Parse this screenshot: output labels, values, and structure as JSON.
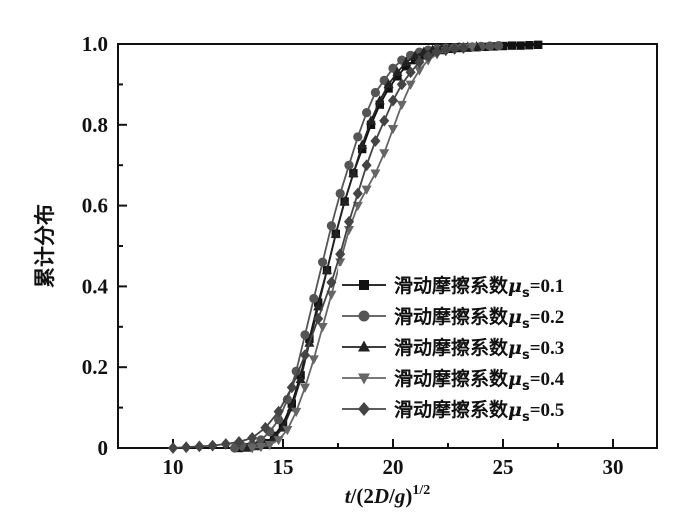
{
  "chart_data": {
    "type": "line",
    "xlabel_parts": [
      "t",
      "/(2",
      "D",
      "/",
      "g",
      ")",
      "1/2"
    ],
    "ylabel": "累计分布",
    "xlim": [
      7.5,
      32
    ],
    "ylim": [
      0,
      1.0
    ],
    "xticks": [
      10,
      15,
      20,
      25,
      30
    ],
    "xtick_labels": [
      "10",
      "15",
      "20",
      "25",
      "30"
    ],
    "yticks": [
      0,
      0.2,
      0.4,
      0.6,
      0.8,
      1.0
    ],
    "ytick_labels": [
      "0",
      "0.2",
      "0.4",
      "0.6",
      "0.8",
      "1.0"
    ],
    "legend_position": "right",
    "series": [
      {
        "label_prefix": "滑动摩擦系数",
        "label_symbol": "μ",
        "label_sub": "s",
        "label_value": "=0.1",
        "marker": "square",
        "color": "#111111",
        "x": [
          13.0,
          13.4,
          13.8,
          14.2,
          14.6,
          15.0,
          15.4,
          15.8,
          16.2,
          16.6,
          17.0,
          17.4,
          17.8,
          18.2,
          18.6,
          19.0,
          19.4,
          19.8,
          20.2,
          20.6,
          21.0,
          21.4,
          21.8,
          22.2,
          22.6,
          23.0,
          23.4,
          23.8,
          24.2,
          24.6,
          25.0,
          25.4,
          25.8,
          26.2,
          26.6
        ],
        "y": [
          0.0,
          0.002,
          0.005,
          0.012,
          0.03,
          0.06,
          0.11,
          0.18,
          0.27,
          0.36,
          0.44,
          0.53,
          0.61,
          0.68,
          0.74,
          0.8,
          0.85,
          0.89,
          0.92,
          0.945,
          0.96,
          0.972,
          0.98,
          0.985,
          0.988,
          0.99,
          0.991,
          0.992,
          0.993,
          0.994,
          0.995,
          0.996,
          0.996,
          0.997,
          0.998
        ]
      },
      {
        "label_prefix": "滑动摩擦系数",
        "label_symbol": "μ",
        "label_sub": "s",
        "label_value": "=0.2",
        "marker": "circle",
        "color": "#555555",
        "x": [
          12.8,
          13.2,
          13.6,
          14.0,
          14.4,
          14.8,
          15.2,
          15.6,
          16.0,
          16.4,
          16.8,
          17.2,
          17.6,
          18.0,
          18.4,
          18.8,
          19.2,
          19.6,
          20.0,
          20.4,
          20.8,
          21.2,
          21.6,
          22.0,
          22.4,
          22.8,
          23.2,
          23.6,
          24.0,
          24.4,
          24.8
        ],
        "y": [
          0.0,
          0.003,
          0.008,
          0.02,
          0.04,
          0.07,
          0.12,
          0.19,
          0.28,
          0.37,
          0.46,
          0.55,
          0.63,
          0.7,
          0.77,
          0.83,
          0.88,
          0.91,
          0.94,
          0.96,
          0.972,
          0.98,
          0.985,
          0.988,
          0.99,
          0.991,
          0.992,
          0.993,
          0.994,
          0.995,
          0.996
        ]
      },
      {
        "label_prefix": "滑动摩擦系数",
        "label_symbol": "μ",
        "label_sub": "s",
        "label_value": "=0.3",
        "marker": "triangle-up",
        "color": "#222222",
        "x": [
          13.4,
          13.8,
          14.2,
          14.6,
          15.0,
          15.4,
          15.8,
          16.2,
          16.6,
          17.0,
          17.4,
          17.8,
          18.2,
          18.6,
          19.0,
          19.4,
          19.8,
          20.2,
          20.6,
          21.0,
          21.4,
          21.8,
          22.2,
          22.6,
          23.0,
          23.4,
          23.8
        ],
        "y": [
          0.0,
          0.004,
          0.01,
          0.025,
          0.05,
          0.1,
          0.17,
          0.26,
          0.35,
          0.44,
          0.53,
          0.61,
          0.68,
          0.75,
          0.81,
          0.86,
          0.9,
          0.93,
          0.955,
          0.97,
          0.98,
          0.985,
          0.988,
          0.99,
          0.992,
          0.993,
          0.994
        ]
      },
      {
        "label_prefix": "滑动摩擦系数",
        "label_symbol": "μ",
        "label_sub": "s",
        "label_value": "=0.4",
        "marker": "triangle-down",
        "color": "#666666",
        "x": [
          13.6,
          14.0,
          14.4,
          14.8,
          15.2,
          15.6,
          16.0,
          16.4,
          16.8,
          17.2,
          17.6,
          18.0,
          18.4,
          18.8,
          19.2,
          19.6,
          20.0,
          20.4,
          20.8,
          21.2,
          21.6,
          22.0,
          22.4,
          22.8,
          23.2,
          23.6
        ],
        "y": [
          0.0,
          0.003,
          0.008,
          0.02,
          0.045,
          0.09,
          0.15,
          0.22,
          0.3,
          0.38,
          0.46,
          0.54,
          0.6,
          0.64,
          0.68,
          0.73,
          0.79,
          0.85,
          0.9,
          0.935,
          0.96,
          0.975,
          0.983,
          0.988,
          0.991,
          0.993
        ]
      },
      {
        "label_prefix": "滑动摩擦系数",
        "label_symbol": "μ",
        "label_sub": "s",
        "label_value": "=0.5",
        "marker": "diamond",
        "color": "#444444",
        "x": [
          10.0,
          10.6,
          11.2,
          11.8,
          12.4,
          13.0,
          13.6,
          14.2,
          14.8,
          15.4,
          16.0,
          16.6,
          17.2,
          17.6,
          18.0,
          18.4,
          18.8,
          19.2,
          19.6,
          20.0,
          20.4,
          20.8,
          21.2,
          21.6,
          22.0,
          22.4,
          22.8,
          23.2
        ],
        "y": [
          0.0,
          0.002,
          0.004,
          0.006,
          0.01,
          0.015,
          0.025,
          0.05,
          0.09,
          0.15,
          0.23,
          0.32,
          0.41,
          0.48,
          0.56,
          0.63,
          0.7,
          0.76,
          0.81,
          0.86,
          0.9,
          0.93,
          0.955,
          0.97,
          0.98,
          0.985,
          0.988,
          0.99
        ]
      }
    ]
  }
}
